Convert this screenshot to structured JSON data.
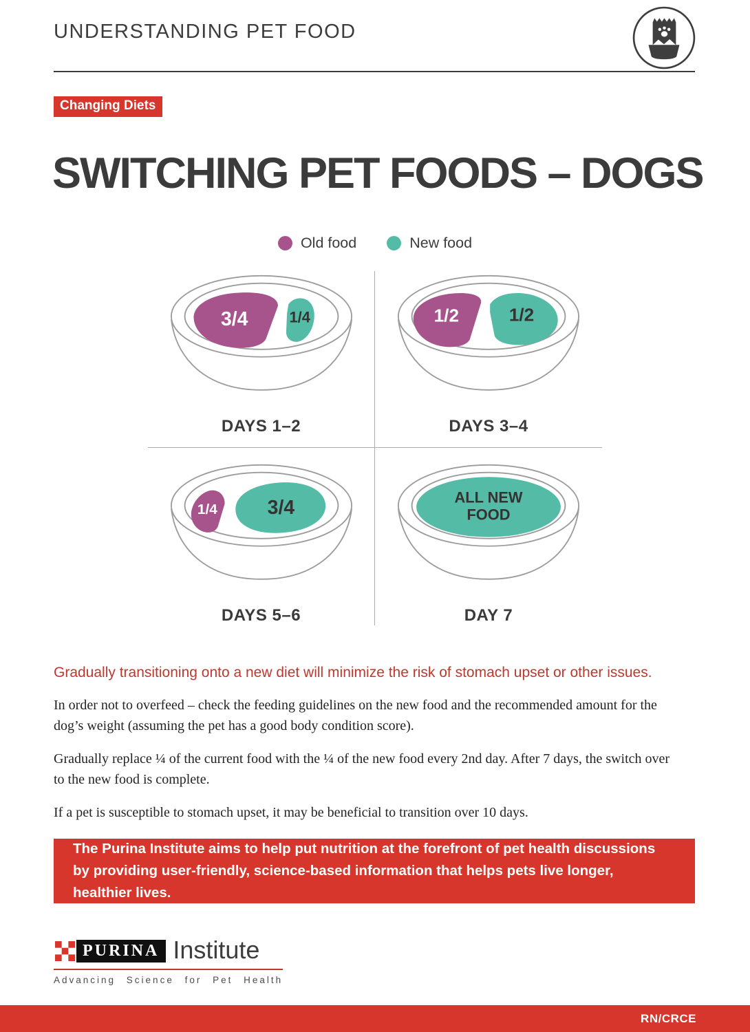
{
  "header": {
    "title": "UNDERSTANDING PET FOOD",
    "icon": "pet-food-bag-bowl-icon"
  },
  "badge": {
    "label": "Changing Diets"
  },
  "page_title": "SWITCHING PET FOODS – DOGS",
  "colors": {
    "old_food": "#A8548C",
    "new_food": "#54BBA6",
    "accent_red": "#D6362C",
    "red_text": "#BE382E",
    "text_dark": "#3A3A3A",
    "bowl_stroke": "#9C9C9C",
    "divider": "#ABABAB",
    "portion_text_old": "#FFFFFF",
    "portion_text_new": "#333333"
  },
  "legend": [
    {
      "label": "Old food",
      "food": "old"
    },
    {
      "label": "New food",
      "food": "new"
    }
  ],
  "chart_data": {
    "type": "pictorial-bowls",
    "title": "SWITCHING PET FOODS – DOGS",
    "bowls": [
      {
        "label": "DAYS 1–2",
        "portions": [
          {
            "food": "old",
            "value": 0.75,
            "label_lines": [
              "3/4"
            ]
          },
          {
            "food": "new",
            "value": 0.25,
            "label_lines": [
              "1/4"
            ]
          }
        ]
      },
      {
        "label": "DAYS 3–4",
        "portions": [
          {
            "food": "old",
            "value": 0.5,
            "label_lines": [
              "1/2"
            ]
          },
          {
            "food": "new",
            "value": 0.5,
            "label_lines": [
              "1/2"
            ]
          }
        ]
      },
      {
        "label": "DAYS 5–6",
        "portions": [
          {
            "food": "old",
            "value": 0.25,
            "label_lines": [
              "1/4"
            ]
          },
          {
            "food": "new",
            "value": 0.75,
            "label_lines": [
              "3/4"
            ]
          }
        ]
      },
      {
        "label": "DAY 7",
        "portions": [
          {
            "food": "new",
            "value": 1.0,
            "label_lines": [
              "ALL NEW",
              "FOOD"
            ]
          }
        ]
      }
    ]
  },
  "highlight": "Gradually transitioning onto a new diet will minimize the risk of stomach upset or other issues.",
  "paragraphs": [
    "In order not to overfeed – check the feeding guidelines on the new food and the recommended amount for the dog’s weight (assuming the pet has a good body condition score).",
    "Gradually replace ¼ of the current food with the ¼ of the new food every 2nd day. After 7 days, the switch over to the new food is complete.",
    "If a pet is susceptible to stomach upset, it may be beneficial to transition over 10 days."
  ],
  "banner": "The Purina Institute aims to help put nutrition at the forefront of pet health discussions by providing user-friendly, science-based information that helps pets live longer, healthier lives.",
  "logo": {
    "brand": "PURINA",
    "suffix": "Institute",
    "tagline": "Advancing Science for Pet Health"
  },
  "footer": {
    "code": "RN/CRCE"
  }
}
